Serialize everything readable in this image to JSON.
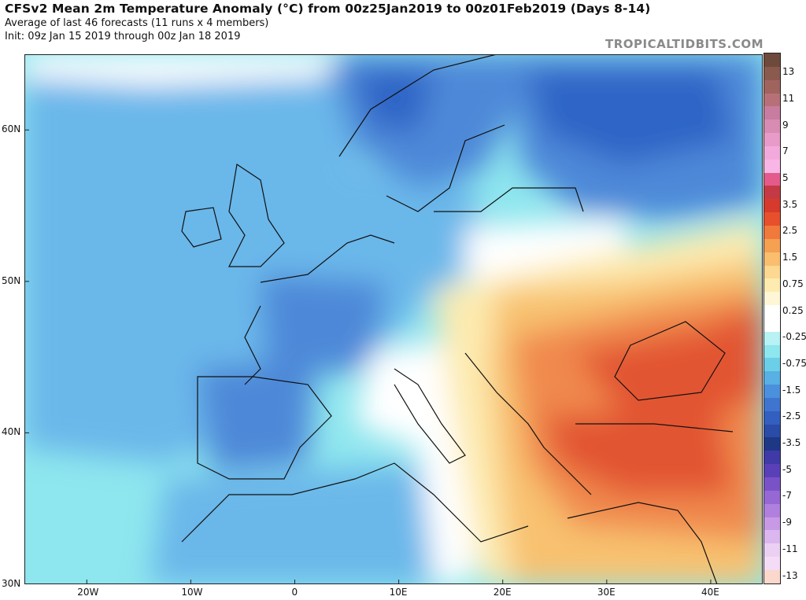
{
  "header": {
    "title": "CFSv2 Mean 2m Temperature Anomaly (°C) from 00z25Jan2019 to 00z01Feb2019 (Days 8-14)",
    "subtitle1": "Average of last 46 forecasts (11 runs x 4 members)",
    "subtitle2": "Init: 09z Jan 15 2019 through 00z Jan 18 2019"
  },
  "brand": "TROPICALTIDBITS.COM",
  "map": {
    "lat_labels": [
      "60N",
      "50N",
      "40N",
      "30N"
    ],
    "lon_labels": [
      "20W",
      "10W",
      "0",
      "10E",
      "20E",
      "30E",
      "40E"
    ],
    "lat_range": [
      30,
      65
    ],
    "lon_range": [
      -26,
      45
    ],
    "colors": {
      "cold_strong": "#2f65c6",
      "cold": "#4d88d8",
      "cool": "#6bb7ea",
      "slightly_cool": "#8ee6ee",
      "neutral": "#ffffff",
      "slightly_warm": "#fdebb0",
      "warm": "#f8c16f",
      "warmer": "#f0894d",
      "hot": "#e25533"
    }
  },
  "colorbar": {
    "labels": [
      "13",
      "11",
      "9",
      "7",
      "5",
      "3.5",
      "2.5",
      "1.5",
      "0.75",
      "0.25",
      "-0.25",
      "-0.75",
      "-1.5",
      "-2.5",
      "-3.5",
      "-5",
      "-7",
      "-9",
      "-11",
      "-13"
    ],
    "colors": [
      "#6e4a3c",
      "#8a5a4e",
      "#a0645e",
      "#b87078",
      "#c87ca0",
      "#d88cb4",
      "#e89ac8",
      "#f2aadc",
      "#f8b6e6",
      "#e45a8a",
      "#c43a44",
      "#d63a2c",
      "#e8502c",
      "#f07a3c",
      "#f6a052",
      "#f9be6e",
      "#fcd890",
      "#fdebb0",
      "#fff6d6",
      "#ffffff",
      "#ffffff",
      "#b8f2f4",
      "#8ee6ee",
      "#6ccfe8",
      "#58b0e4",
      "#4b90dc",
      "#3f75cf",
      "#325fc0",
      "#2a4ba6",
      "#1e3886",
      "#3f3aa8",
      "#5a40b8",
      "#7a52c8",
      "#9668d4",
      "#b080de",
      "#c89ae6",
      "#dcb6ee",
      "#ecd0f4",
      "#f4dcf6",
      "#fbd8cc"
    ]
  }
}
